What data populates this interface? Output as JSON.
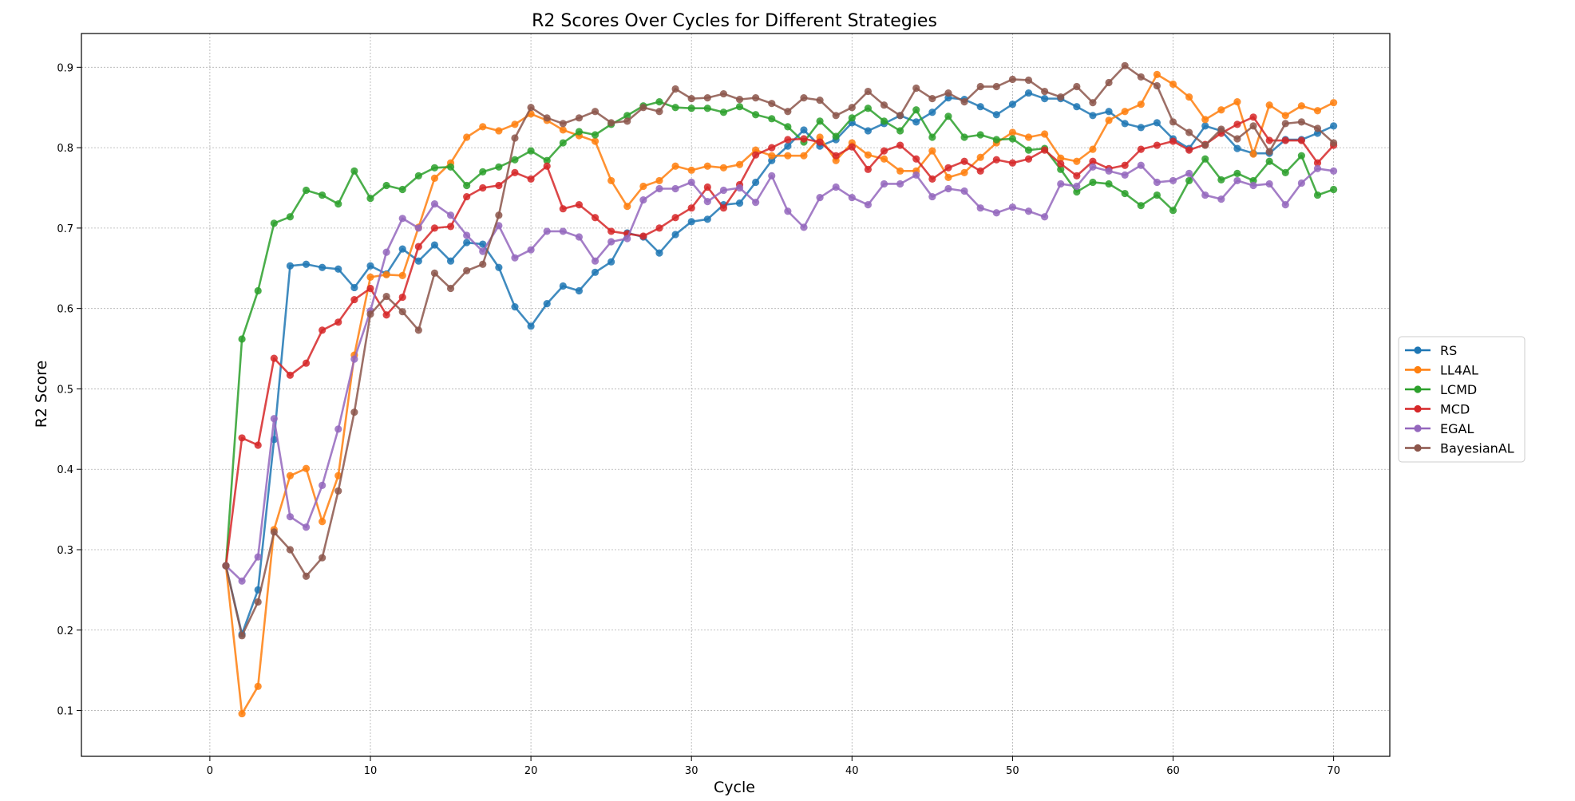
{
  "chart_data": {
    "type": "line",
    "title": "R2 Scores Over Cycles for Different Strategies",
    "xlabel": "Cycle",
    "ylabel": "R2 Score",
    "xlim": [
      -8,
      73.5
    ],
    "ylim": [
      0.043,
      0.942
    ],
    "xticks": [
      0,
      10,
      20,
      30,
      40,
      50,
      60,
      70
    ],
    "yticks": [
      0.1,
      0.2,
      0.3,
      0.4,
      0.5,
      0.6,
      0.7,
      0.8,
      0.9
    ],
    "grid": true,
    "legend_position": "center-right-outside",
    "x": [
      1,
      2,
      3,
      4,
      5,
      6,
      7,
      8,
      9,
      10,
      11,
      12,
      13,
      14,
      15,
      16,
      17,
      18,
      19,
      20,
      21,
      22,
      23,
      24,
      25,
      26,
      27,
      28,
      29,
      30,
      31,
      32,
      33,
      34,
      35,
      36,
      37,
      38,
      39,
      40,
      41,
      42,
      43,
      44,
      45,
      46,
      47,
      48,
      49,
      50,
      51,
      52,
      53,
      54,
      55,
      56,
      57,
      58,
      59,
      60,
      61,
      62,
      63,
      64,
      65,
      66,
      67,
      68,
      69,
      70
    ],
    "series": [
      {
        "name": "RS",
        "color": "#1f77b4",
        "values": [
          0.28,
          0.195,
          0.25,
          0.437,
          0.653,
          0.655,
          0.651,
          0.649,
          0.626,
          0.653,
          0.643,
          0.674,
          0.659,
          0.679,
          0.659,
          0.682,
          0.68,
          0.651,
          0.602,
          0.578,
          0.606,
          0.628,
          0.622,
          0.645,
          0.658,
          0.694,
          0.689,
          0.669,
          0.692,
          0.708,
          0.711,
          0.729,
          0.731,
          0.757,
          0.784,
          0.802,
          0.822,
          0.802,
          0.81,
          0.831,
          0.821,
          0.83,
          0.84,
          0.832,
          0.844,
          0.862,
          0.86,
          0.851,
          0.841,
          0.854,
          0.868,
          0.861,
          0.861,
          0.851,
          0.84,
          0.845,
          0.83,
          0.825,
          0.831,
          0.811,
          0.799,
          0.827,
          0.821,
          0.799,
          0.793,
          0.793,
          0.81,
          0.81,
          0.818,
          0.827
        ]
      },
      {
        "name": "LL4AL",
        "color": "#ff7f0e",
        "values": [
          0.28,
          0.096,
          0.13,
          0.325,
          0.392,
          0.401,
          0.335,
          0.392,
          0.542,
          0.639,
          0.642,
          0.641,
          0.701,
          0.762,
          0.781,
          0.813,
          0.826,
          0.821,
          0.829,
          0.842,
          0.834,
          0.822,
          0.815,
          0.808,
          0.759,
          0.727,
          0.752,
          0.759,
          0.777,
          0.772,
          0.777,
          0.775,
          0.779,
          0.797,
          0.79,
          0.79,
          0.79,
          0.813,
          0.784,
          0.806,
          0.791,
          0.786,
          0.771,
          0.771,
          0.796,
          0.763,
          0.769,
          0.788,
          0.806,
          0.819,
          0.813,
          0.817,
          0.787,
          0.783,
          0.798,
          0.834,
          0.845,
          0.854,
          0.891,
          0.879,
          0.863,
          0.835,
          0.847,
          0.857,
          0.792,
          0.853,
          0.84,
          0.852,
          0.846,
          0.856
        ]
      },
      {
        "name": "LCMD",
        "color": "#2ca02c",
        "values": [
          0.28,
          0.562,
          0.622,
          0.706,
          0.714,
          0.747,
          0.741,
          0.73,
          0.771,
          0.737,
          0.753,
          0.748,
          0.765,
          0.775,
          0.776,
          0.753,
          0.77,
          0.776,
          0.785,
          0.796,
          0.784,
          0.806,
          0.82,
          0.816,
          0.829,
          0.84,
          0.852,
          0.857,
          0.85,
          0.849,
          0.849,
          0.844,
          0.851,
          0.841,
          0.836,
          0.826,
          0.807,
          0.833,
          0.814,
          0.837,
          0.849,
          0.833,
          0.821,
          0.847,
          0.813,
          0.839,
          0.813,
          0.816,
          0.81,
          0.811,
          0.797,
          0.799,
          0.773,
          0.745,
          0.757,
          0.755,
          0.743,
          0.728,
          0.741,
          0.722,
          0.759,
          0.786,
          0.76,
          0.768,
          0.759,
          0.783,
          0.769,
          0.79,
          0.741,
          0.748
        ]
      },
      {
        "name": "MCD",
        "color": "#d62728",
        "values": [
          0.28,
          0.439,
          0.43,
          0.538,
          0.517,
          0.532,
          0.573,
          0.583,
          0.611,
          0.625,
          0.592,
          0.614,
          0.677,
          0.7,
          0.702,
          0.739,
          0.75,
          0.753,
          0.769,
          0.761,
          0.777,
          0.724,
          0.729,
          0.713,
          0.696,
          0.693,
          0.69,
          0.7,
          0.713,
          0.725,
          0.751,
          0.725,
          0.754,
          0.791,
          0.8,
          0.81,
          0.811,
          0.807,
          0.79,
          0.801,
          0.773,
          0.796,
          0.803,
          0.786,
          0.761,
          0.775,
          0.783,
          0.771,
          0.785,
          0.781,
          0.786,
          0.797,
          0.78,
          0.765,
          0.783,
          0.774,
          0.778,
          0.798,
          0.803,
          0.808,
          0.797,
          0.804,
          0.818,
          0.829,
          0.838,
          0.809,
          0.809,
          0.809,
          0.781,
          0.803
        ]
      },
      {
        "name": "EGAL",
        "color": "#9467bd",
        "values": [
          0.28,
          0.261,
          0.291,
          0.463,
          0.341,
          0.328,
          0.38,
          0.45,
          0.537,
          0.597,
          0.67,
          0.712,
          0.7,
          0.73,
          0.716,
          0.691,
          0.671,
          0.703,
          0.663,
          0.673,
          0.696,
          0.696,
          0.689,
          0.659,
          0.683,
          0.687,
          0.735,
          0.749,
          0.749,
          0.757,
          0.733,
          0.747,
          0.75,
          0.732,
          0.765,
          0.721,
          0.701,
          0.738,
          0.751,
          0.738,
          0.729,
          0.755,
          0.755,
          0.766,
          0.739,
          0.749,
          0.746,
          0.725,
          0.719,
          0.726,
          0.721,
          0.714,
          0.755,
          0.752,
          0.776,
          0.771,
          0.766,
          0.778,
          0.757,
          0.759,
          0.768,
          0.741,
          0.736,
          0.759,
          0.753,
          0.755,
          0.729,
          0.756,
          0.774,
          0.771
        ]
      },
      {
        "name": "BayesianAL",
        "color": "#8c564b",
        "values": [
          0.28,
          0.193,
          0.235,
          0.322,
          0.3,
          0.267,
          0.29,
          0.373,
          0.471,
          0.593,
          0.615,
          0.596,
          0.573,
          0.644,
          0.625,
          0.647,
          0.655,
          0.716,
          0.812,
          0.85,
          0.837,
          0.83,
          0.837,
          0.845,
          0.831,
          0.833,
          0.85,
          0.845,
          0.873,
          0.861,
          0.862,
          0.867,
          0.86,
          0.862,
          0.855,
          0.845,
          0.862,
          0.859,
          0.84,
          0.85,
          0.87,
          0.853,
          0.84,
          0.874,
          0.861,
          0.868,
          0.857,
          0.876,
          0.876,
          0.885,
          0.884,
          0.87,
          0.863,
          0.876,
          0.856,
          0.881,
          0.902,
          0.888,
          0.877,
          0.832,
          0.819,
          0.803,
          0.823,
          0.811,
          0.827,
          0.795,
          0.83,
          0.832,
          0.824,
          0.806
        ]
      }
    ]
  }
}
